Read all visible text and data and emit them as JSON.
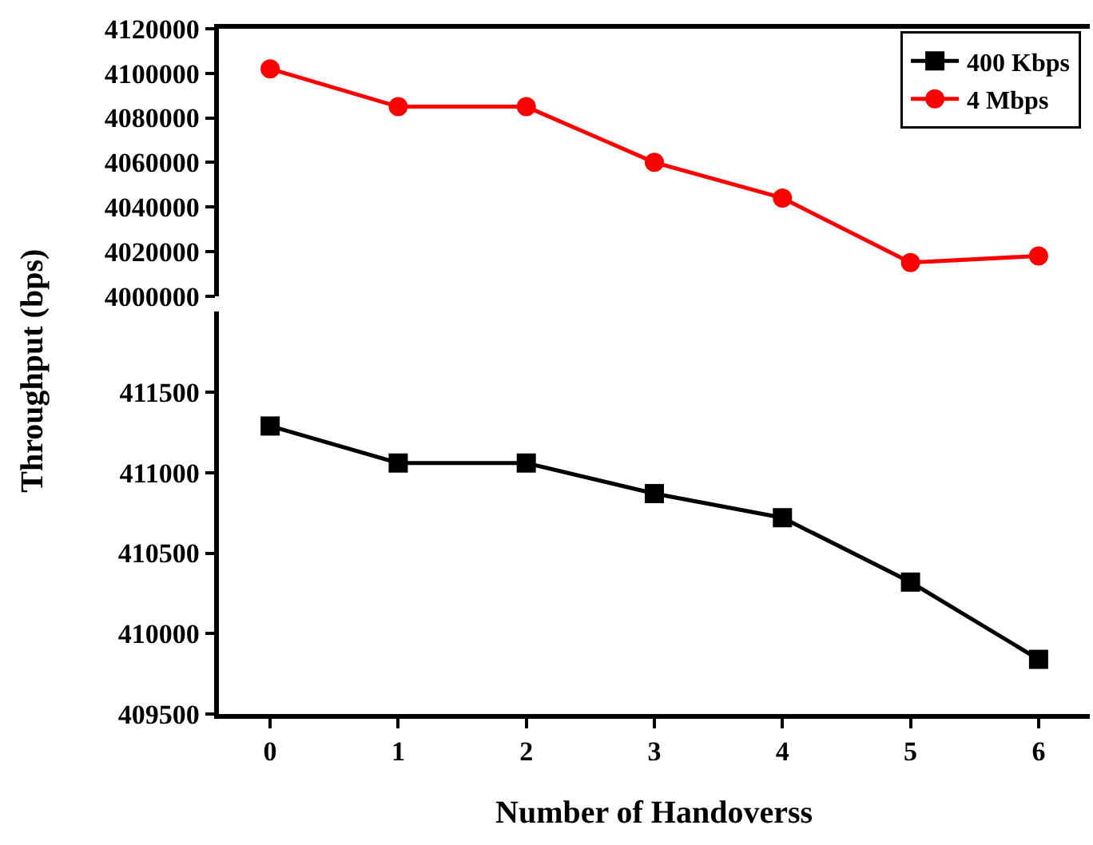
{
  "chart_data": [
    {
      "type": "line",
      "ylabel": "Throughput (bps)",
      "x": [
        0,
        1,
        2,
        3,
        4,
        5,
        6
      ],
      "xlim": [
        -0.4,
        6.4
      ],
      "xticks": [
        0,
        1,
        2,
        3,
        4,
        5,
        6
      ],
      "ylim": [
        4000000,
        4120000
      ],
      "yticks": [
        4000000,
        4020000,
        4040000,
        4060000,
        4080000,
        4100000,
        4120000
      ],
      "tick_labels": "y",
      "marker": "circle",
      "legend": "top right",
      "series": [
        {
          "name": "4 Mbps",
          "color": "#ff0000",
          "values": [
            4102000,
            4085000,
            4085000,
            4060000,
            4044000,
            4015000,
            4018000
          ]
        }
      ]
    },
    {
      "type": "line",
      "xlabel": "Number of Handoverss",
      "x": [
        0,
        1,
        2,
        3,
        4,
        5,
        6
      ],
      "xlim": [
        -0.4,
        6.4
      ],
      "xticks": [
        0,
        1,
        2,
        3,
        4,
        5,
        6
      ],
      "ylim": [
        409500,
        412000
      ],
      "yticks": [
        409500,
        410000,
        410500,
        411000,
        411500
      ],
      "marker": "square",
      "series": [
        {
          "name": "400 Kbps",
          "color": "#000000",
          "values": [
            411290,
            411060,
            411060,
            410870,
            410720,
            410320,
            409840
          ]
        }
      ]
    }
  ]
}
